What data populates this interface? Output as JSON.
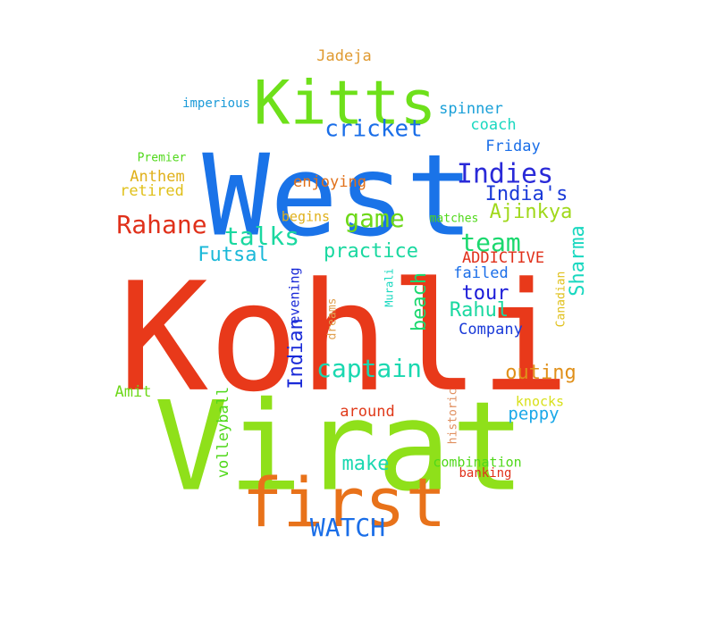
{
  "words": [
    {
      "text": "Kohli",
      "color": "#e8391a"
    },
    {
      "text": "Virat",
      "color": "#8fe01a"
    },
    {
      "text": "West",
      "color": "#1a73e8"
    },
    {
      "text": "Kitts",
      "color": "#6ee01a"
    },
    {
      "text": "first",
      "color": "#e8721a"
    },
    {
      "text": "Indies",
      "color": "#2a2ad8"
    },
    {
      "text": "captain",
      "color": "#1ad8b0"
    },
    {
      "text": "cricket",
      "color": "#1a6ee8"
    },
    {
      "text": "game",
      "color": "#6ed81a"
    },
    {
      "text": "team",
      "color": "#1ad86e"
    },
    {
      "text": "Rahane",
      "color": "#e0301a"
    },
    {
      "text": "talks",
      "color": "#1ad8a0"
    },
    {
      "text": "WATCH",
      "color": "#1a6ee8"
    },
    {
      "text": "practice",
      "color": "#1ad8a0"
    },
    {
      "text": "India's",
      "color": "#1a3ad8"
    },
    {
      "text": "Ajinkya",
      "color": "#a0d81a"
    },
    {
      "text": "Rahul",
      "color": "#1ad8a0"
    },
    {
      "text": "tour",
      "color": "#1a1ad8"
    },
    {
      "text": "outing",
      "color": "#e0901a"
    },
    {
      "text": "make",
      "color": "#1ad8b0"
    },
    {
      "text": "Futsal",
      "color": "#1ab8d8"
    },
    {
      "text": "Sharma",
      "color": "#1ad8c0"
    },
    {
      "text": "beach",
      "color": "#1ad86e"
    },
    {
      "text": "Indian",
      "color": "#1a2ad8"
    },
    {
      "text": "Jadeja",
      "color": "#e09a30"
    },
    {
      "text": "spinner",
      "color": "#1aa0d8"
    },
    {
      "text": "coach",
      "color": "#1ad8c0"
    },
    {
      "text": "Friday",
      "color": "#1a6ee8"
    },
    {
      "text": "Anthem",
      "color": "#e0b01a"
    },
    {
      "text": "retired",
      "color": "#e0c01a"
    },
    {
      "text": "enjoying",
      "color": "#e0701a"
    },
    {
      "text": "begins",
      "color": "#e0b01a"
    },
    {
      "text": "matches",
      "color": "#50d81a"
    },
    {
      "text": "ADDICTIVE",
      "color": "#e0301a"
    },
    {
      "text": "failed",
      "color": "#1a6ee8"
    },
    {
      "text": "Company",
      "color": "#1a3ad8"
    },
    {
      "text": "evening",
      "color": "#1a2ad8"
    },
    {
      "text": "Amit",
      "color": "#6ed81a"
    },
    {
      "text": "around",
      "color": "#e03a1a"
    },
    {
      "text": "peppy",
      "color": "#1aa8e8"
    },
    {
      "text": "volleyball",
      "color": "#50d81a"
    },
    {
      "text": "combination",
      "color": "#50d81a"
    },
    {
      "text": "banking",
      "color": "#e0301a"
    },
    {
      "text": "knocks",
      "color": "#d8e01a"
    },
    {
      "text": "historic",
      "color": "#e09060"
    },
    {
      "text": "dreams",
      "color": "#e0a050"
    },
    {
      "text": "Murali",
      "color": "#1ad8c0"
    },
    {
      "text": "Canadian",
      "color": "#e0c01a"
    },
    {
      "text": "imperious",
      "color": "#1a9ad8"
    },
    {
      "text": "Premier",
      "color": "#50d81a"
    }
  ]
}
